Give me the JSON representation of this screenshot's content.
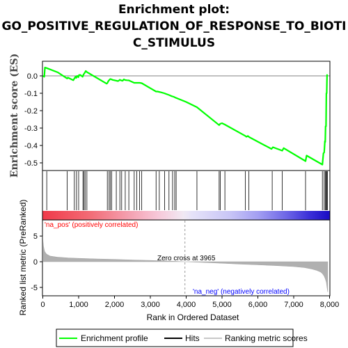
{
  "title": {
    "line1": "Enrichment plot:",
    "line2": "GO_POSITIVE_REGULATION_OF_RESPONSE_TO_BIOTI",
    "line3": "C_STIMULUS"
  },
  "colors": {
    "enrichment_line": "#00ff00",
    "hits": "#000000",
    "ranking_fill": "#b0b0b0",
    "pos_label": "#ff0000",
    "neg_label": "#0000ff"
  },
  "chart_data": {
    "type": "line",
    "x_range": [
      0,
      8000
    ],
    "top_panel": {
      "ylabel": "Enrichment score (ES)",
      "ylim": [
        -0.54,
        0.08
      ],
      "yticks": [
        0.0,
        -0.1,
        -0.2,
        -0.3,
        -0.4,
        -0.5
      ],
      "ytick_labels": [
        "0.0",
        "-0.1",
        "-0.2",
        "-0.3",
        "-0.4",
        "-0.5"
      ],
      "series": [
        {
          "name": "Enrichment profile",
          "x": [
            0,
            40,
            60,
            100,
            420,
            680,
            700,
            850,
            880,
            910,
            930,
            960,
            990,
            1010,
            1050,
            1080,
            1110,
            1130,
            1150,
            1170,
            1200,
            1230,
            1780,
            1800,
            1830,
            1850,
            1870,
            1890,
            1950,
            2100,
            2130,
            2150,
            2180,
            2230,
            2260,
            2300,
            2350,
            2400,
            2550,
            2600,
            2650,
            2700,
            2760,
            3160,
            3200,
            3300,
            3390,
            3440,
            3520,
            3600,
            3650,
            3700,
            4000,
            4300,
            4920,
            4950,
            5000,
            5080,
            5650,
            5680,
            5720,
            5760,
            6380,
            6420,
            6680,
            6720,
            7330,
            7360,
            7800,
            7830,
            7850,
            7870,
            7880,
            7890,
            7900,
            7910,
            7920,
            7930,
            7940
          ],
          "y": [
            0.0,
            -0.005,
            0.048,
            0.045,
            0.02,
            -0.015,
            -0.01,
            -0.025,
            -0.015,
            -0.005,
            -0.012,
            0.0,
            -0.008,
            0.005,
            0.005,
            0.0,
            -0.005,
            0.005,
            0.012,
            0.018,
            0.028,
            0.022,
            -0.045,
            -0.042,
            -0.03,
            -0.025,
            -0.02,
            -0.018,
            -0.023,
            -0.03,
            -0.026,
            -0.022,
            -0.026,
            -0.028,
            -0.02,
            -0.024,
            -0.025,
            -0.026,
            -0.04,
            -0.04,
            -0.04,
            -0.04,
            -0.042,
            -0.09,
            -0.09,
            -0.095,
            -0.1,
            -0.104,
            -0.11,
            -0.117,
            -0.12,
            -0.125,
            -0.15,
            -0.18,
            -0.283,
            -0.275,
            -0.272,
            -0.28,
            -0.345,
            -0.35,
            -0.345,
            -0.352,
            -0.42,
            -0.41,
            -0.43,
            -0.415,
            -0.49,
            -0.458,
            -0.51,
            -0.445,
            -0.44,
            -0.375,
            -0.38,
            -0.29,
            -0.29,
            -0.1,
            -0.1,
            0.005,
            0.0
          ]
        }
      ]
    },
    "hits": [
      110,
      680,
      880,
      940,
      1000,
      1120,
      1150,
      1180,
      1230,
      1800,
      1850,
      1880,
      1920,
      2050,
      2150,
      2200,
      2300,
      2400,
      2550,
      2620,
      2700,
      2760,
      3160,
      3250,
      3400,
      3520,
      3620,
      3680,
      3720,
      4300,
      4920,
      4950,
      5080,
      5650,
      5750,
      6400,
      6680,
      7330,
      7800,
      7850,
      7880,
      7900,
      7920,
      7940
    ],
    "bottom_panel": {
      "ylabel": "Ranked list metric (PreRanked)",
      "xlabel": "Rank in Ordered Dataset",
      "ylim": [
        -6.5,
        8.0
      ],
      "yticks": [
        5,
        0,
        -5
      ],
      "ytick_labels": [
        "5",
        "0",
        "-5"
      ],
      "xticks": [
        0,
        1000,
        2000,
        3000,
        4000,
        5000,
        6000,
        7000,
        8000
      ],
      "xtick_labels": [
        "0",
        "1,000",
        "2,000",
        "3,000",
        "4,000",
        "5,000",
        "6,000",
        "7,000",
        "8,000"
      ],
      "metric_x": [
        0,
        5,
        20,
        50,
        100,
        200,
        400,
        700,
        1000,
        1500,
        2000,
        2500,
        3000,
        3500,
        3965,
        4500,
        5000,
        5500,
        6000,
        6500,
        7000,
        7300,
        7500,
        7650,
        7750,
        7800,
        7850,
        7880,
        7910,
        7930,
        7950
      ],
      "metric_y": [
        5.0,
        4.0,
        3.0,
        2.0,
        1.5,
        1.1,
        0.9,
        0.75,
        0.65,
        0.55,
        0.45,
        0.35,
        0.25,
        0.12,
        0.0,
        -0.15,
        -0.3,
        -0.45,
        -0.6,
        -0.75,
        -0.95,
        -1.15,
        -1.4,
        -1.7,
        -2.0,
        -2.3,
        -2.8,
        -3.3,
        -4.0,
        -5.0,
        -5.9
      ],
      "zero_cross_label": "Zero cross at 3965",
      "zero_cross_x": 3965,
      "pos_label": "'na_pos' (positively correlated)",
      "neg_label": "'na_neg' (negatively correlated)"
    },
    "legend": {
      "placement": "bottom",
      "entries": [
        "Enrichment profile",
        "Hits",
        "Ranking metric scores"
      ]
    }
  }
}
